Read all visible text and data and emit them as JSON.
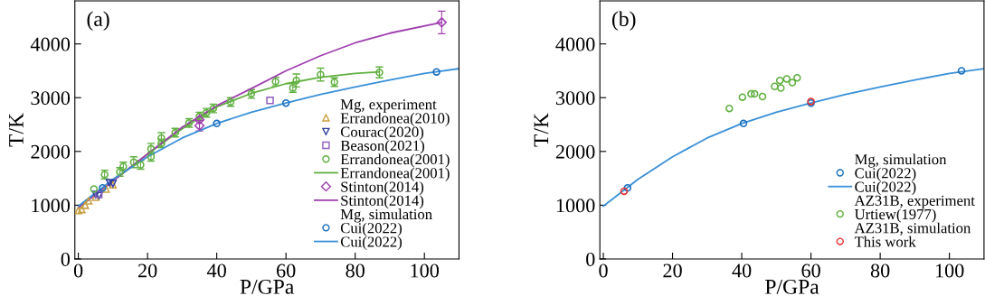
{
  "chart_data": [
    {
      "type": "scatter",
      "title": "(a)",
      "xlabel": "P/GPa",
      "ylabel": "T/K",
      "xlim": [
        -1,
        110
      ],
      "ylim": [
        0,
        4800
      ],
      "xticks": [
        0,
        20,
        40,
        60,
        80,
        100
      ],
      "yticks": [
        0,
        1000,
        2000,
        3000,
        4000
      ],
      "grid": false,
      "legend": "bottom right",
      "series": [
        {
          "name": "Mg, experiment",
          "marker": "none"
        },
        {
          "name": "Errandonea(2010)",
          "marker": "triangle",
          "color": "#c8a040",
          "x": [
            0,
            1,
            2,
            3,
            5,
            8,
            10
          ],
          "values": [
            900,
            920,
            1000,
            1080,
            1150,
            1300,
            1380
          ]
        },
        {
          "name": "Courac(2020)",
          "marker": "triangle_down",
          "color": "#3040a0",
          "x": [
            5,
            6,
            9,
            10
          ],
          "values": [
            1200,
            1180,
            1420,
            1400
          ]
        },
        {
          "name": "Beason(2021)",
          "marker": "square",
          "color": "#9060c0",
          "x": [
            5.9,
            55.4
          ],
          "values": [
            1200,
            2950
          ]
        },
        {
          "name": "Errandonea(2001)",
          "marker": "circle",
          "color": "#60b040",
          "x": [
            4.5,
            7.6,
            12,
            13,
            16,
            18,
            21,
            21,
            24,
            24,
            28,
            32,
            35,
            37,
            39,
            44,
            50,
            57,
            62,
            63,
            70,
            74,
            87
          ],
          "values": [
            1300,
            1570,
            1620,
            1720,
            1800,
            1750,
            2050,
            1900,
            2250,
            2150,
            2350,
            2530,
            2650,
            2720,
            2800,
            2920,
            3070,
            3300,
            3180,
            3320,
            3430,
            3290,
            3470
          ],
          "errors": [
            null,
            80,
            80,
            80,
            100,
            80,
            100,
            80,
            100,
            80,
            80,
            80,
            80,
            80,
            80,
            80,
            80,
            80,
            80,
            120,
            120,
            80,
            100
          ]
        },
        {
          "name": "Errandonea(2001)",
          "type": "line",
          "color": "#60b040",
          "x": [
            0,
            10,
            20,
            30,
            40,
            50,
            60,
            70,
            80,
            87
          ],
          "values": [
            950,
            1450,
            1950,
            2420,
            2830,
            3080,
            3260,
            3380,
            3450,
            3480
          ]
        },
        {
          "name": "Stinton(2014)",
          "marker": "diamond",
          "color": "#a040b0",
          "x": [
            35,
            35,
            105
          ],
          "values": [
            2590,
            2480,
            4400
          ],
          "errors": [
            null,
            100,
            210
          ]
        },
        {
          "name": "Stinton(2014)",
          "type": "line",
          "color": "#a040b0",
          "x": [
            0,
            10,
            20,
            30,
            40,
            50,
            60,
            70,
            80,
            90,
            105
          ],
          "values": [
            950,
            1450,
            1950,
            2450,
            2850,
            3170,
            3500,
            3780,
            4020,
            4200,
            4400
          ]
        },
        {
          "name": "Mg, simulation",
          "marker": "none"
        },
        {
          "name": "Cui(2022)",
          "marker": "circle",
          "color": "#1a70c0",
          "x": [
            7,
            40,
            60,
            103.5
          ],
          "values": [
            1320,
            2520,
            2900,
            3480
          ]
        },
        {
          "name": "Cui(2022)",
          "type": "line",
          "color": "#3a90d8",
          "x": [
            0,
            10,
            20,
            30,
            40,
            50,
            60,
            70,
            80,
            90,
            100,
            110
          ],
          "values": [
            980,
            1480,
            1900,
            2250,
            2520,
            2730,
            2900,
            3060,
            3200,
            3330,
            3450,
            3540
          ]
        }
      ]
    },
    {
      "type": "scatter",
      "title": "(b)",
      "xlabel": "P/GPa",
      "ylabel": "T/K",
      "xlim": [
        -1,
        110
      ],
      "ylim": [
        0,
        4800
      ],
      "xticks": [
        0,
        20,
        40,
        60,
        80,
        100
      ],
      "yticks": [
        0,
        1000,
        2000,
        3000,
        4000
      ],
      "grid": false,
      "legend": "bottom right",
      "series": [
        {
          "name": "Mg, simulation",
          "marker": "none"
        },
        {
          "name": "Cui(2022)",
          "marker": "circle",
          "color": "#1a70c0",
          "x": [
            7,
            40.5,
            60,
            103.5
          ],
          "values": [
            1320,
            2520,
            2900,
            3500
          ]
        },
        {
          "name": "Cui(2022)",
          "type": "line",
          "color": "#3a90d8",
          "x": [
            0,
            10,
            20,
            30,
            40,
            50,
            60,
            70,
            80,
            90,
            100,
            110
          ],
          "values": [
            980,
            1480,
            1900,
            2250,
            2520,
            2730,
            2900,
            3060,
            3200,
            3330,
            3450,
            3540
          ]
        },
        {
          "name": "AZ31B, experiment",
          "marker": "none"
        },
        {
          "name": "Urtiew(1977)",
          "marker": "circle",
          "color": "#60b040",
          "x": [
            36.4,
            40.2,
            42.7,
            43.7,
            46,
            49.5,
            51,
            51.3,
            53,
            54.6,
            56
          ],
          "values": [
            2800,
            3010,
            3070,
            3070,
            3020,
            3210,
            3320,
            3180,
            3350,
            3280,
            3370
          ]
        },
        {
          "name": "AZ31B, simulation",
          "marker": "none"
        },
        {
          "name": "This work",
          "marker": "circle",
          "color": "#e83030",
          "x": [
            6,
            60
          ],
          "values": [
            1260,
            2930
          ]
        }
      ]
    }
  ]
}
